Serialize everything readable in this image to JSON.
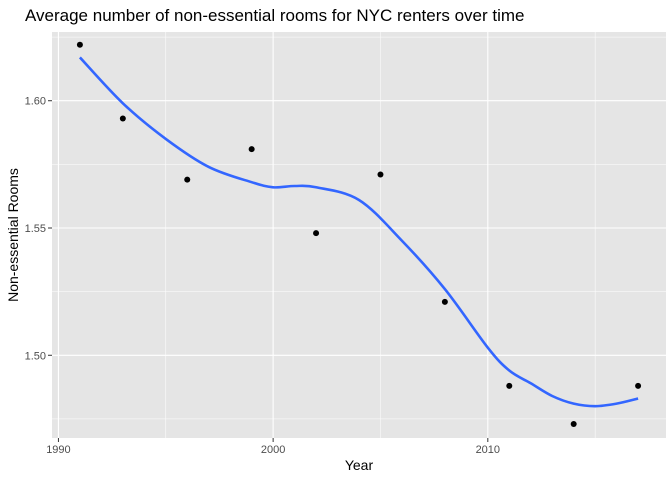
{
  "chart_data": {
    "type": "scatter",
    "title": "Average number of non-essential rooms for NYC renters over time",
    "xlabel": "Year",
    "ylabel": "Non-essential Rooms",
    "xlim": [
      1989.7,
      2018.3
    ],
    "ylim": [
      1.4675,
      1.627
    ],
    "x_ticks": [
      1990,
      2000,
      2010
    ],
    "x_tick_labels": [
      "1990",
      "2000",
      "2010"
    ],
    "y_ticks": [
      1.5,
      1.55,
      1.6
    ],
    "y_tick_labels": [
      "1.50",
      "1.55",
      "1.60"
    ],
    "grid": true,
    "legend": "none",
    "colors": {
      "panel": "#e5e5e5",
      "grid": "#ffffff",
      "points": "#000000",
      "smooth": "#3366ff"
    },
    "series": [
      {
        "kind": "points",
        "x": [
          1991,
          1993,
          1996,
          1999,
          2002,
          2005,
          2008,
          2011,
          2014,
          2017
        ],
        "y": [
          1.622,
          1.593,
          1.569,
          1.581,
          1.548,
          1.571,
          1.521,
          1.488,
          1.473,
          1.488
        ]
      },
      {
        "kind": "smooth",
        "x": [
          1991,
          1993,
          1995,
          1997,
          1999,
          2000,
          2001,
          2002,
          2004,
          2006,
          2008,
          2010,
          2011,
          2012,
          2013,
          2014,
          2015,
          2016,
          2017
        ],
        "y": [
          1.617,
          1.599,
          1.585,
          1.574,
          1.568,
          1.566,
          1.5665,
          1.566,
          1.561,
          1.545,
          1.526,
          1.503,
          1.494,
          1.489,
          1.484,
          1.481,
          1.48,
          1.481,
          1.483
        ]
      }
    ]
  }
}
